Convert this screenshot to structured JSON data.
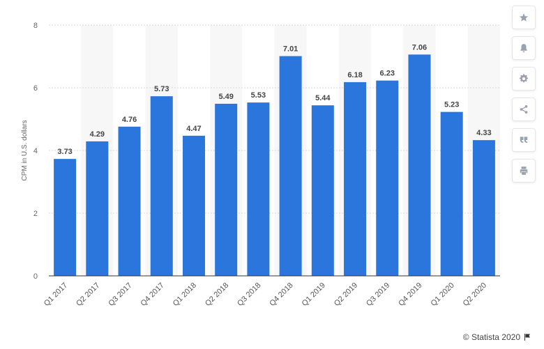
{
  "chart_data": {
    "type": "bar",
    "categories": [
      "Q1 2017",
      "Q2 2017",
      "Q3 2017",
      "Q4 2017",
      "Q1 2018",
      "Q2 2018",
      "Q3 2018",
      "Q4 2018",
      "Q1 2019",
      "Q2 2019",
      "Q3 2019",
      "Q4 2019",
      "Q1 2020",
      "Q2 2020"
    ],
    "values": [
      3.73,
      4.29,
      4.76,
      5.73,
      4.47,
      5.49,
      5.53,
      7.01,
      5.44,
      6.18,
      6.23,
      7.06,
      5.23,
      4.33
    ],
    "data_labels": [
      "3.73",
      "4.29",
      "4.76",
      "5.73",
      "4.47",
      "5.49",
      "5.53",
      "7.01",
      "5.44",
      "6.18",
      "6.23",
      "7.06",
      "5.23",
      "4.33"
    ],
    "ylabel": "CPM in U.S. dollars",
    "xlabel": "",
    "ylim": [
      0,
      8
    ],
    "yticks": [
      0,
      2,
      4,
      6,
      8
    ],
    "ytick_labels": [
      "0",
      "2",
      "4",
      "6",
      "8"
    ],
    "grid": true,
    "bar_color": "#2a76dd",
    "band_color": "#f7f7f7"
  },
  "toolbar": {
    "buttons": [
      {
        "icon": "star-icon",
        "name": "favorite-button"
      },
      {
        "icon": "bell-icon",
        "name": "notification-button"
      },
      {
        "icon": "gear-icon",
        "name": "settings-button"
      },
      {
        "icon": "share-icon",
        "name": "share-button"
      },
      {
        "icon": "quote-icon",
        "name": "cite-button"
      },
      {
        "icon": "print-icon",
        "name": "print-button"
      }
    ]
  },
  "credit": {
    "text": "© Statista 2020"
  }
}
